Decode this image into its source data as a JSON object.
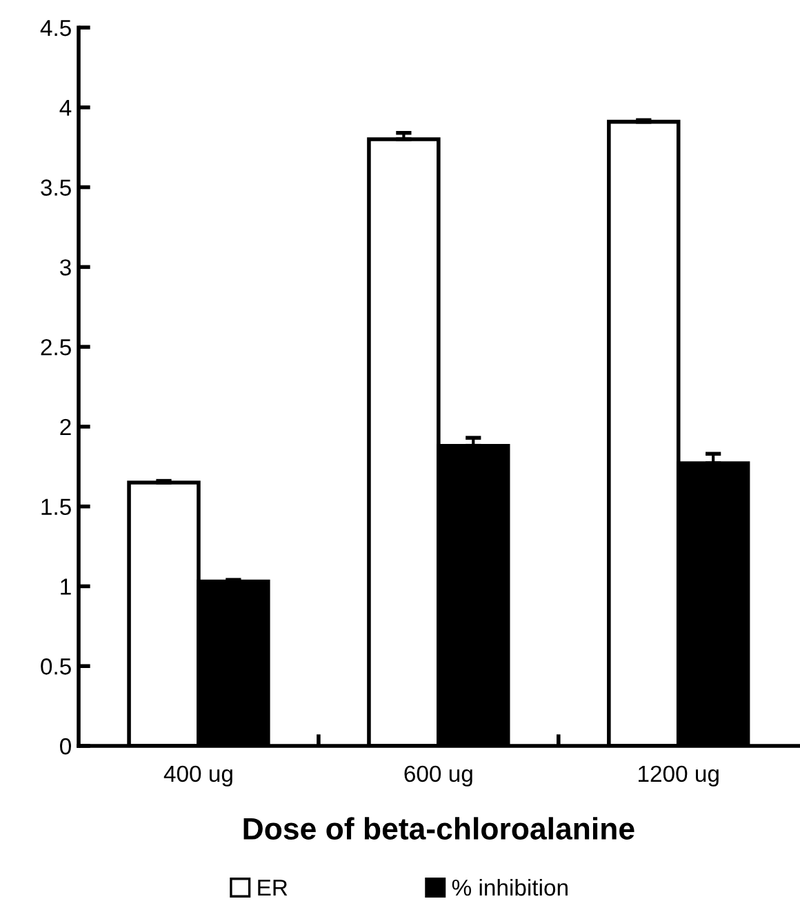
{
  "chart_data": {
    "type": "bar",
    "xlabel": "Dose of beta-chloroalanine",
    "categories": [
      "400 ug",
      "600 ug",
      "1200 ug"
    ],
    "series": [
      {
        "name": "ER",
        "color": "#ffffff",
        "values": [
          1.65,
          3.8,
          3.91
        ],
        "errors": [
          [
            1.65,
            1.66
          ],
          [
            3.8,
            3.84
          ],
          [
            3.91,
            3.92
          ]
        ]
      },
      {
        "name": "% inhibition",
        "color": "#000000",
        "values": [
          1.03,
          1.88,
          1.77
        ],
        "errors": [
          [
            1.03,
            1.04
          ],
          [
            1.88,
            1.93
          ],
          [
            1.77,
            1.83
          ]
        ]
      }
    ],
    "ylim": [
      0,
      4.5
    ],
    "yticks": [
      0,
      0.5,
      1,
      1.5,
      2,
      2.5,
      3,
      3.5,
      4,
      4.5
    ],
    "grid": false,
    "legend": "bottom"
  }
}
